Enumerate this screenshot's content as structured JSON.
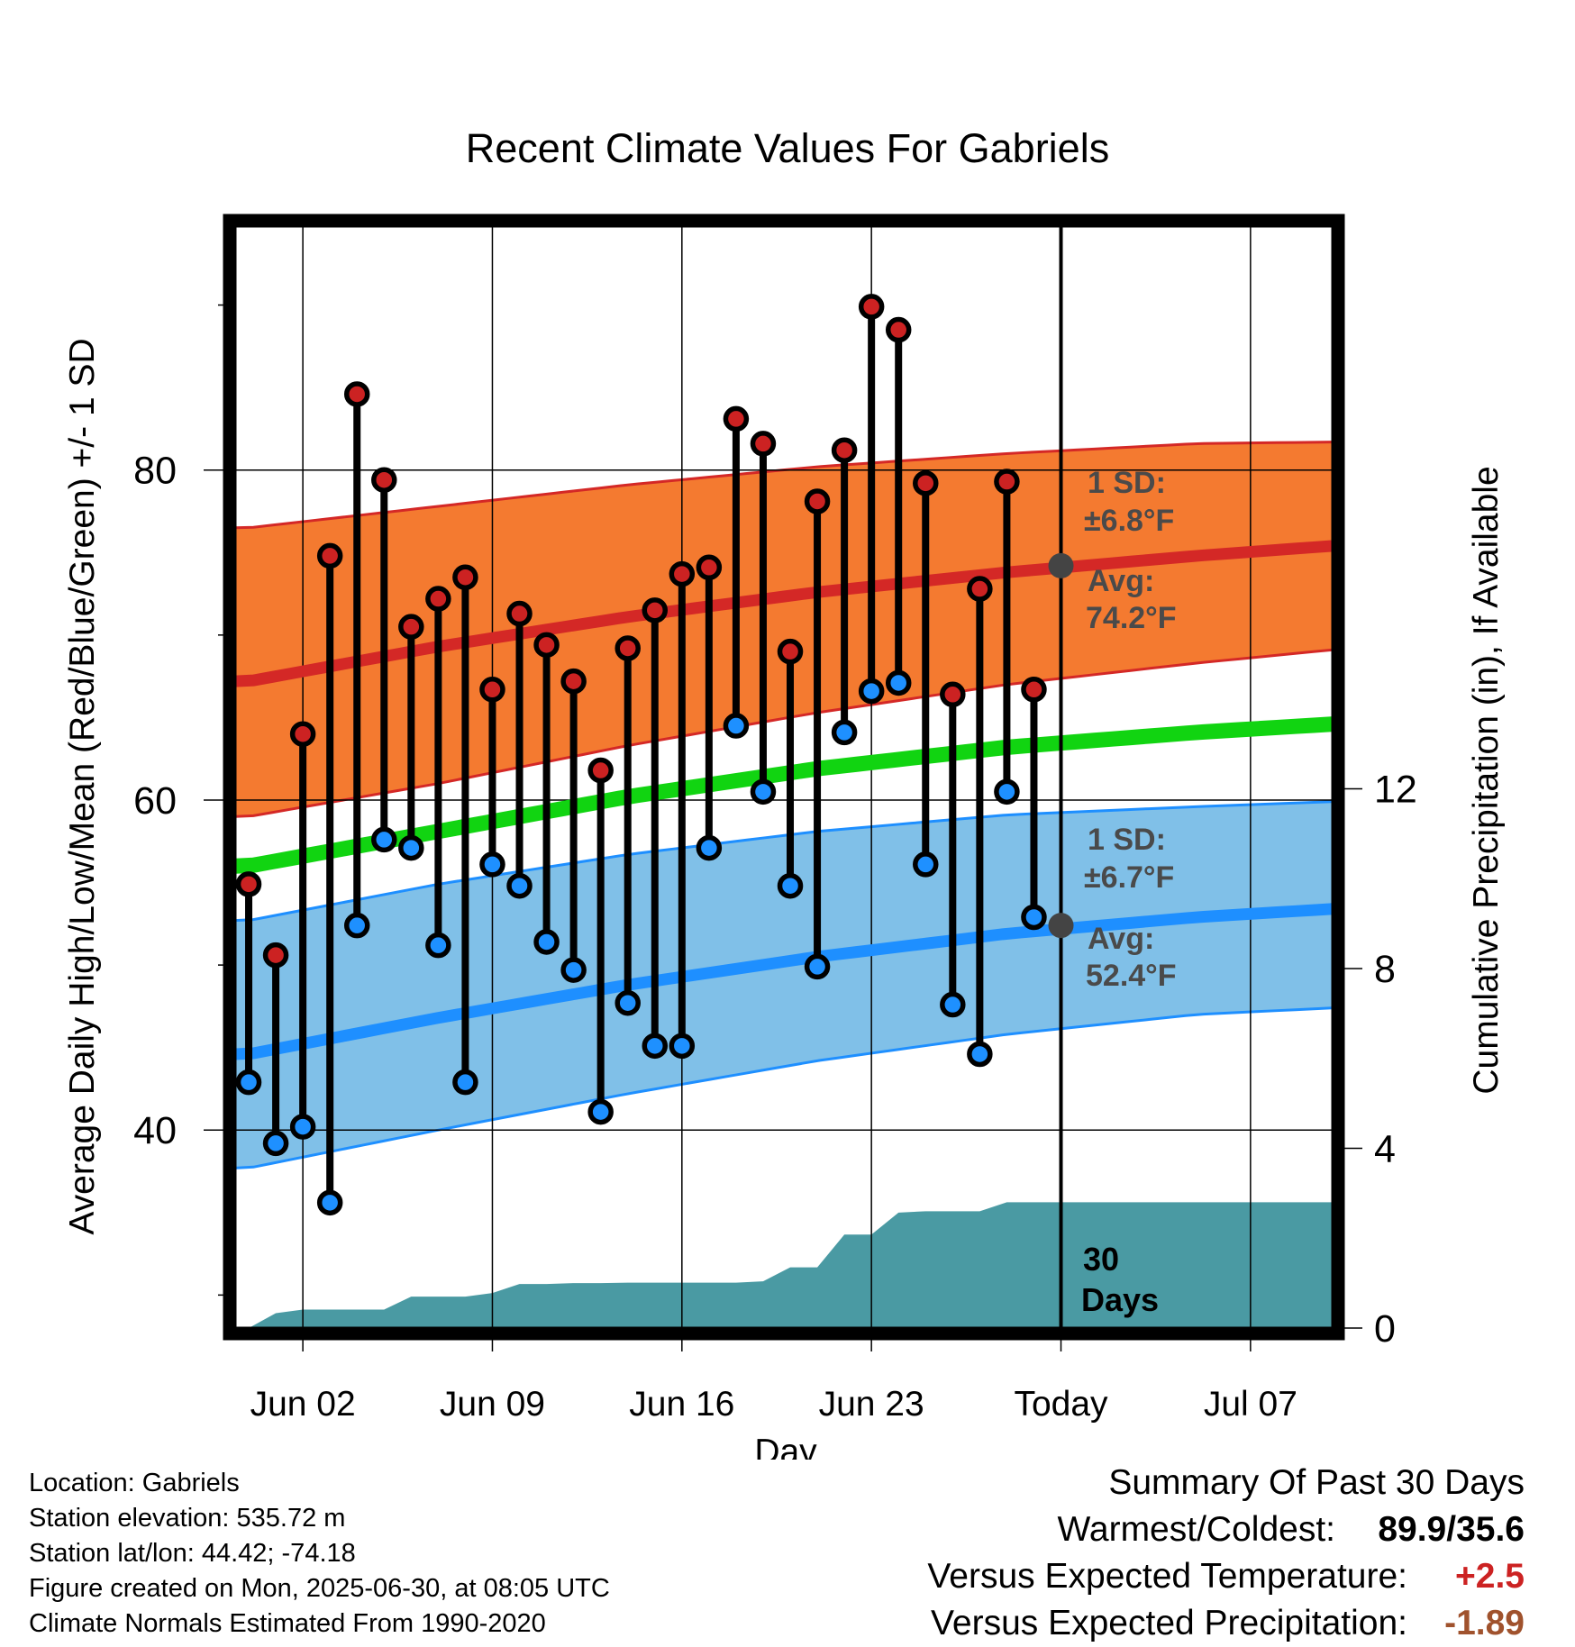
{
  "chart_data": {
    "type": "line",
    "title": "Recent Climate Values For Gabriels",
    "xlabel": "Day",
    "ylabel_left": "Average Daily High/Low/Mean (Red/Blue/Green) +/- 1 SD",
    "ylabel_right": "Cumulative Precipitation (in), If Available",
    "x_tick_labels": [
      "Jun 02",
      "Jun 09",
      "Jun 16",
      "Jun 23",
      "Today",
      "Jul 07"
    ],
    "y_left_ticks": [
      "40",
      "60",
      "80"
    ],
    "y_left_range": [
      28,
      95
    ],
    "y_right_ticks": [
      "0",
      "4",
      "8",
      "12"
    ],
    "y_right_range": [
      0,
      24.6
    ],
    "grid": true,
    "days": [
      "May 31",
      "Jun 01",
      "Jun 02",
      "Jun 03",
      "Jun 04",
      "Jun 05",
      "Jun 06",
      "Jun 07",
      "Jun 08",
      "Jun 09",
      "Jun 10",
      "Jun 11",
      "Jun 12",
      "Jun 13",
      "Jun 14",
      "Jun 15",
      "Jun 16",
      "Jun 17",
      "Jun 18",
      "Jun 19",
      "Jun 20",
      "Jun 21",
      "Jun 22",
      "Jun 23",
      "Jun 24",
      "Jun 25",
      "Jun 26",
      "Jun 27",
      "Jun 28",
      "Jun 29"
    ],
    "observed_high": [
      54.9,
      50.6,
      64.0,
      74.8,
      84.6,
      79.4,
      70.5,
      72.2,
      73.5,
      66.7,
      71.3,
      69.4,
      67.2,
      61.8,
      69.2,
      71.5,
      73.7,
      74.1,
      83.1,
      81.6,
      69.0,
      78.1,
      81.2,
      89.9,
      88.5,
      79.2,
      66.4,
      72.8,
      79.3,
      66.7
    ],
    "observed_low": [
      42.9,
      39.2,
      40.2,
      35.6,
      52.4,
      57.6,
      57.1,
      51.2,
      42.9,
      56.1,
      54.8,
      51.4,
      49.7,
      41.1,
      47.7,
      45.1,
      45.1,
      57.1,
      64.5,
      60.5,
      54.8,
      49.9,
      64.1,
      66.6,
      67.1,
      56.1,
      47.6,
      44.6,
      60.5,
      52.9
    ],
    "normal_high": {
      "name": "Avg",
      "x": [
        "May 31",
        "Jun 07",
        "Jun 14",
        "Jun 21",
        "Jun 28",
        "Jul 05",
        "Jul 10"
      ],
      "avg": [
        67.2,
        69.3,
        71.1,
        72.6,
        73.8,
        74.8,
        75.4
      ],
      "upper": [
        76.5,
        77.8,
        79.1,
        80.2,
        81.0,
        81.6,
        81.7
      ],
      "lower": [
        59.0,
        61.0,
        63.3,
        65.3,
        67.0,
        68.3,
        69.1
      ]
    },
    "normal_mean": {
      "x": [
        "May 31",
        "Jun 07",
        "Jun 14",
        "Jun 21",
        "Jun 28",
        "Jul 05",
        "Jul 10"
      ],
      "avg": [
        56.0,
        58.1,
        60.2,
        61.9,
        63.2,
        64.1,
        64.6
      ]
    },
    "normal_low": {
      "name": "Avg",
      "x": [
        "May 31",
        "Jun 07",
        "Jun 14",
        "Jun 21",
        "Jun 28",
        "Jul 05",
        "Jul 10"
      ],
      "avg": [
        44.6,
        46.8,
        48.8,
        50.5,
        51.9,
        52.9,
        53.4
      ],
      "upper": [
        52.7,
        54.9,
        56.7,
        58.1,
        59.1,
        59.6,
        59.9
      ],
      "lower": [
        37.7,
        40.0,
        42.2,
        44.2,
        45.8,
        47.0,
        47.4
      ]
    },
    "cumulative_precipitation": {
      "x": [
        "May 31",
        "Jun 01",
        "Jun 02",
        "Jun 03",
        "Jun 04",
        "Jun 05",
        "Jun 06",
        "Jun 07",
        "Jun 08",
        "Jun 09",
        "Jun 10",
        "Jun 11",
        "Jun 12",
        "Jun 13",
        "Jun 14",
        "Jun 15",
        "Jun 16",
        "Jun 17",
        "Jun 18",
        "Jun 19",
        "Jun 20",
        "Jun 21",
        "Jun 22",
        "Jun 23",
        "Jun 24",
        "Jun 25",
        "Jun 26",
        "Jun 27",
        "Jun 28",
        "Jun 29",
        "Jun 30",
        "Jul 10"
      ],
      "values": [
        0.0,
        0.33,
        0.41,
        0.41,
        0.41,
        0.41,
        0.7,
        0.7,
        0.7,
        0.78,
        0.98,
        0.98,
        1.0,
        1.0,
        1.01,
        1.01,
        1.01,
        1.01,
        1.01,
        1.04,
        1.35,
        1.35,
        2.08,
        2.08,
        2.57,
        2.6,
        2.6,
        2.6,
        2.8,
        2.8,
        2.8,
        2.8
      ]
    },
    "today_marker_label": "Today",
    "window_label": "30 Days",
    "annotations": {
      "high_sd_label": "1 SD:",
      "high_sd_value": "±6.8°F",
      "high_avg_label": "Avg:",
      "high_avg_value": "74.2°F",
      "low_sd_label": "1 SD:",
      "low_sd_value": "±6.7°F",
      "low_avg_label": "Avg:",
      "low_avg_value": "52.4°F",
      "window_line1": "30",
      "window_line2": "Days"
    },
    "colors": {
      "high_band": "#f47a30",
      "high_line": "#d42826",
      "low_band": "#80c0e8",
      "low_line": "#1e8fff",
      "mean_line": "#11d411",
      "precip": "#4a9aa3",
      "high_dot": "#cc2222",
      "low_dot": "#1e90ff",
      "annotation": "#4a4a4a"
    }
  },
  "station_info": {
    "location": "Location: Gabriels",
    "elevation": "Station elevation: 535.72 m",
    "latlon": "Station lat/lon: 44.42; -74.18",
    "created": "Figure created on Mon, 2025-06-30, at 08:05 UTC",
    "normals": "Climate Normals Estimated From 1990-2020"
  },
  "summary": {
    "title": "Summary Of Past 30 Days",
    "warmest_coldest_label": "Warmest/Coldest:",
    "warmest_coldest_value": "89.9/35.6",
    "temp_label": "Versus Expected Temperature:",
    "temp_value": "+2.5",
    "temp_color": "#cc2222",
    "precip_label": "Versus Expected Precipitation:",
    "precip_value": "-1.89",
    "precip_color": "#a0522d"
  }
}
